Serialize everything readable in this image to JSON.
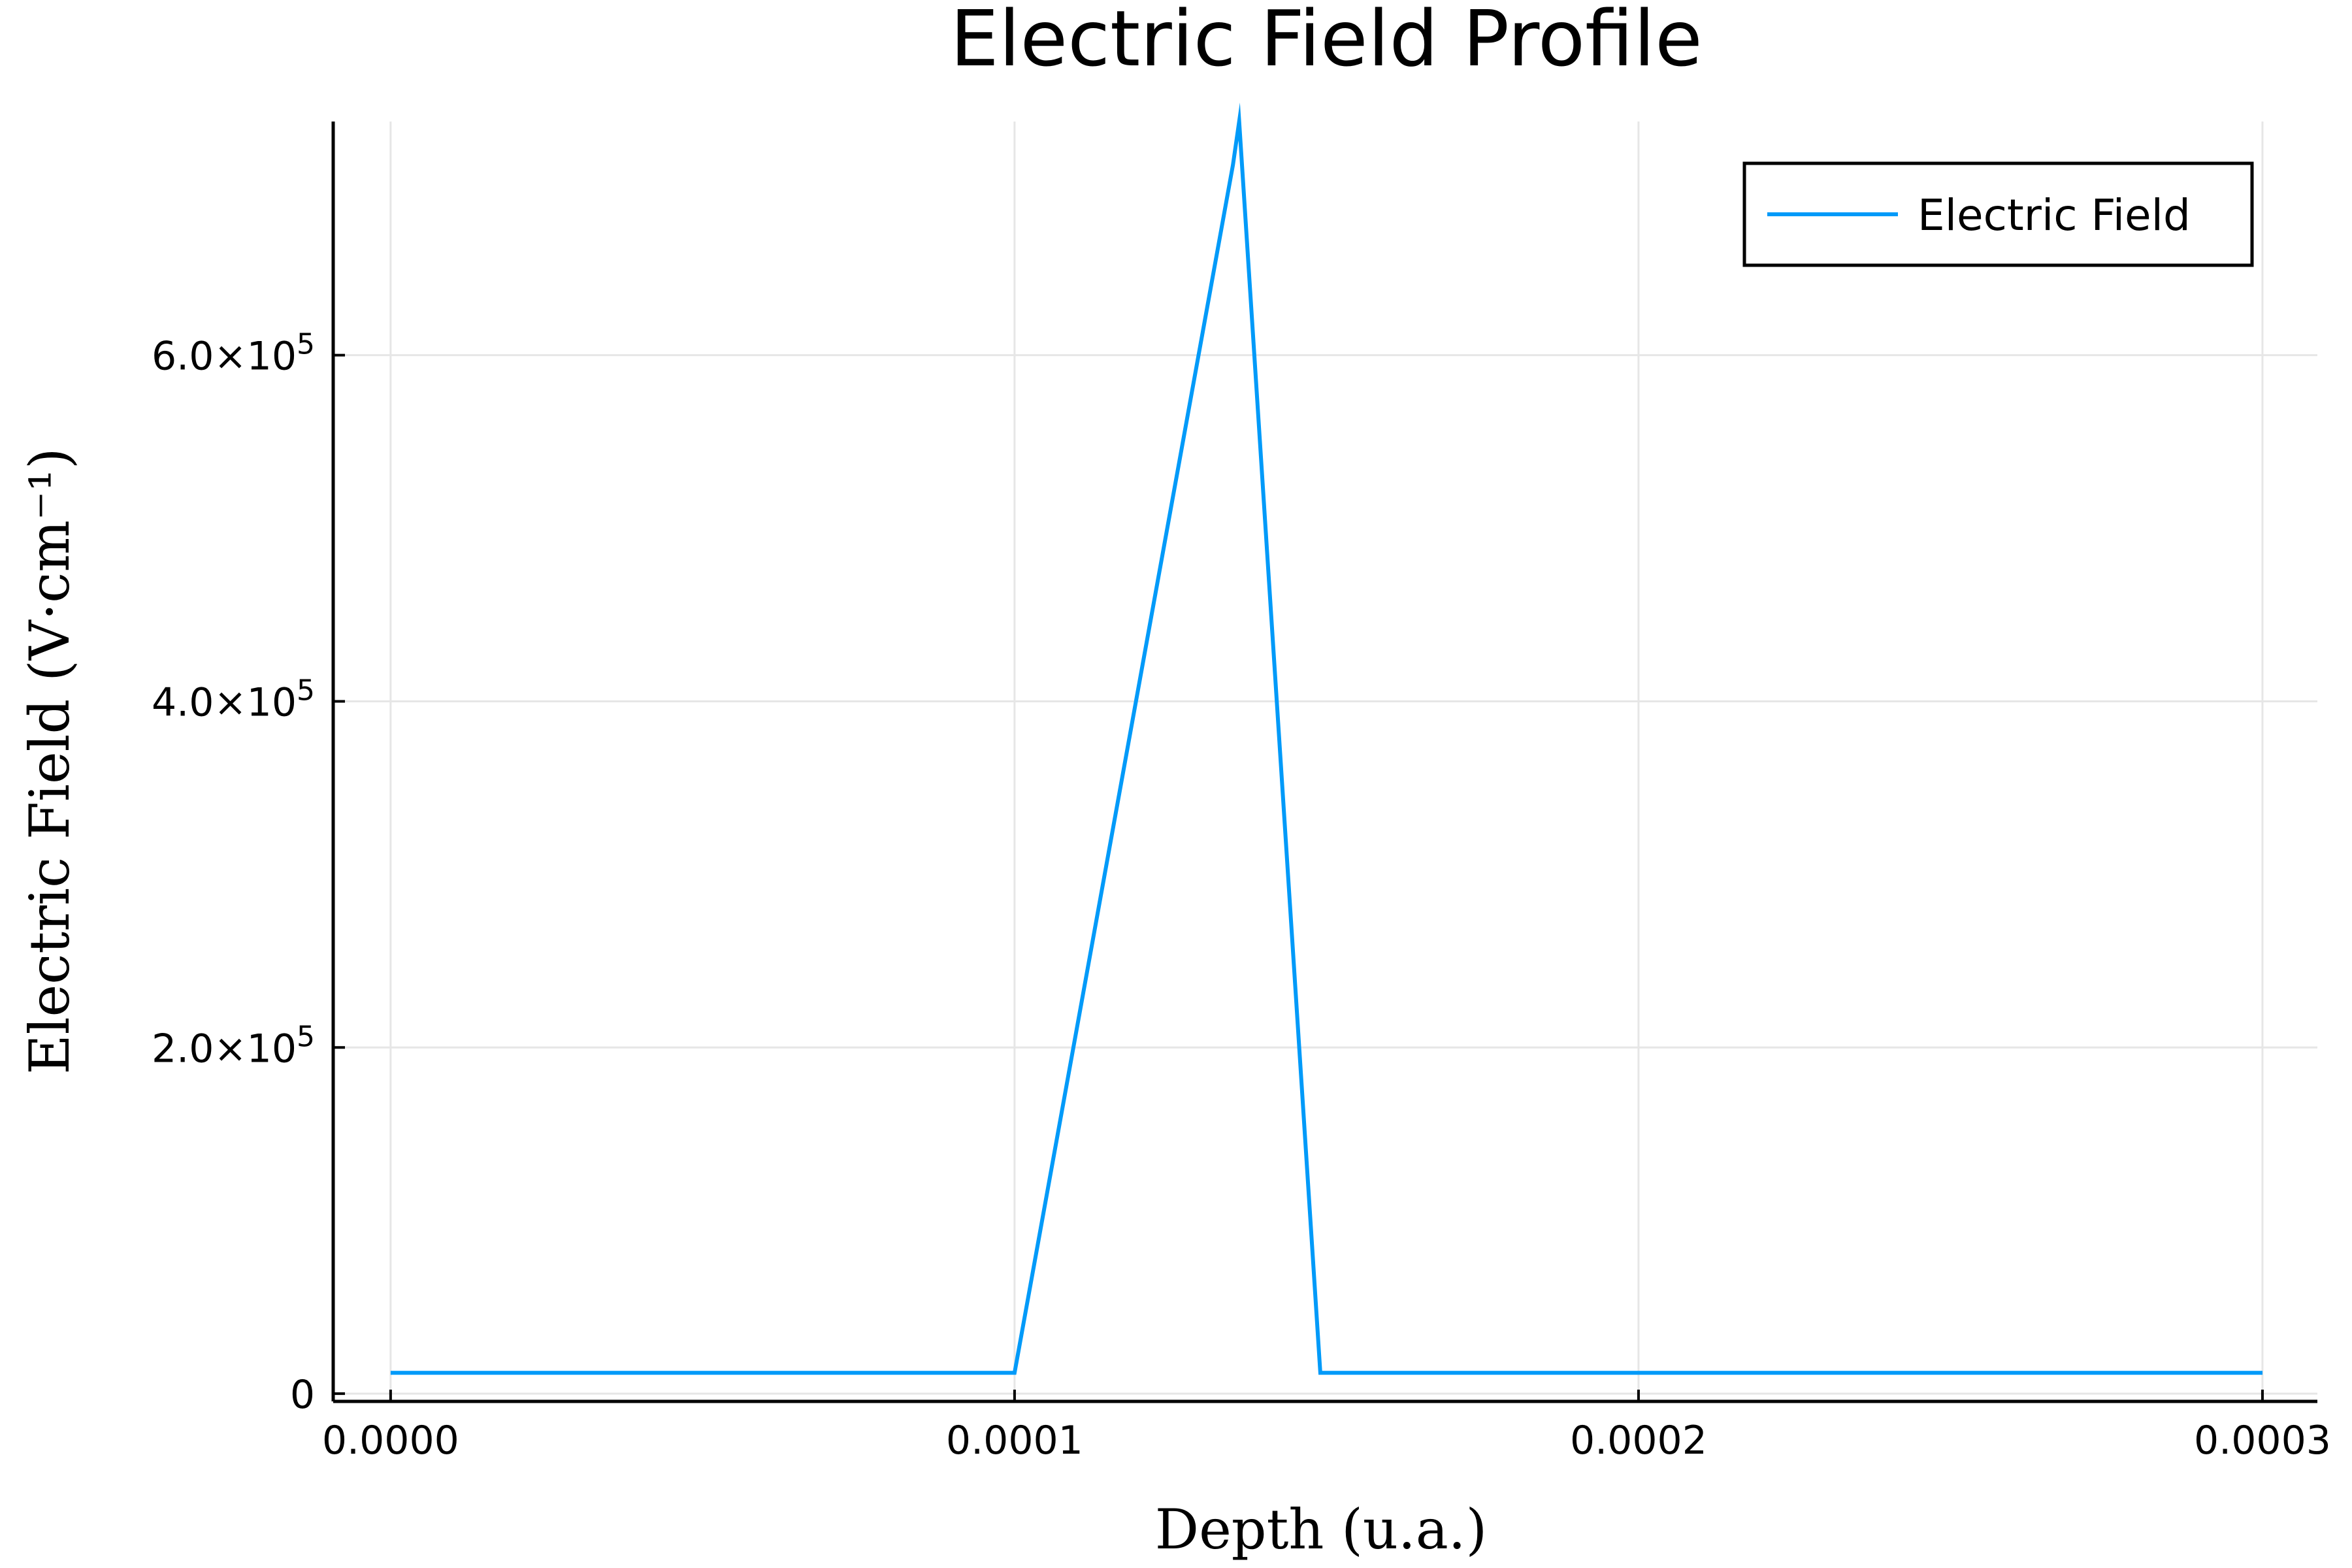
{
  "chart_data": {
    "type": "line",
    "title": "Electric Field Profile",
    "xlabel": "Depth (u.a.)",
    "ylabel": "Electric Field (V·cm⁻¹)",
    "xlim": [
      -9.2e-06,
      0.0003088
    ],
    "ylim": [
      -4500,
      735000
    ],
    "grid": true,
    "legend_position": "top-right",
    "x_ticks": [
      {
        "value": 0.0,
        "label": "0.0000"
      },
      {
        "value": 0.0001,
        "label": "0.0001"
      },
      {
        "value": 0.0002,
        "label": "0.0002"
      },
      {
        "value": 0.0003,
        "label": "0.0003"
      }
    ],
    "y_ticks": [
      {
        "value": 0,
        "label": "0"
      },
      {
        "value": 200000,
        "label": "2.0×10",
        "exp": "5"
      },
      {
        "value": 400000,
        "label": "4.0×10",
        "exp": "5"
      },
      {
        "value": 600000,
        "label": "6.0×10",
        "exp": "5"
      }
    ],
    "series": [
      {
        "name": "Electric Field",
        "color": "#009af9",
        "x": [
          0.0,
          0.0001,
          0.000135,
          0.000136,
          0.000149,
          0.0003
        ],
        "y": [
          12000,
          12000,
          710000,
          735000,
          12000,
          12000
        ]
      }
    ]
  }
}
